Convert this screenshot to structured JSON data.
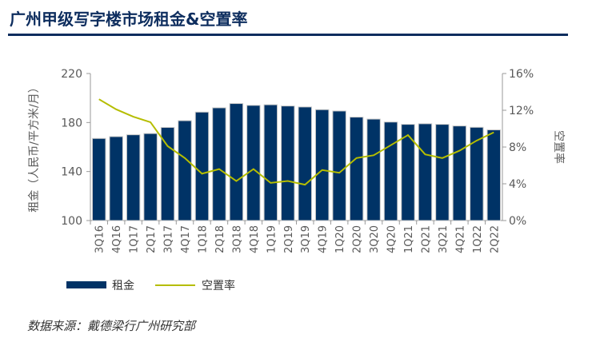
{
  "header": {
    "title": "广州甲级写字楼市场租金&空置率"
  },
  "source": "数据来源：戴德梁行广州研究部",
  "chart_data": {
    "type": "bar+line",
    "title": "广州甲级写字楼市场租金&空置率",
    "categories": [
      "3Q16",
      "4Q16",
      "1Q17",
      "2Q17",
      "3Q17",
      "4Q17",
      "1Q18",
      "2Q18",
      "3Q18",
      "4Q18",
      "1Q19",
      "2Q19",
      "3Q19",
      "4Q19",
      "1Q20",
      "2Q20",
      "3Q20",
      "4Q20",
      "1Q21",
      "2Q21",
      "3Q21",
      "4Q21",
      "1Q22",
      "2Q22"
    ],
    "series": [
      {
        "name": "租金",
        "type": "bar",
        "axis": "left",
        "color": "#003366",
        "values": [
          167,
          168.5,
          170,
          171,
          176,
          181.5,
          188.5,
          192,
          195.5,
          194,
          194.5,
          193.5,
          192.7,
          190.5,
          189.4,
          184.4,
          182.8,
          180.4,
          178.5,
          179,
          178.5,
          177.2,
          176.1,
          174
        ]
      },
      {
        "name": "空置率",
        "type": "line",
        "axis": "right",
        "color": "#b5bd00",
        "values": [
          13.2,
          12.1,
          11.3,
          10.7,
          8.1,
          6.8,
          5.1,
          5.6,
          4.3,
          5.6,
          4.1,
          4.3,
          3.9,
          5.5,
          5.2,
          6.8,
          7.1,
          8.2,
          9.3,
          7.2,
          6.8,
          7.6,
          8.7,
          9.6
        ]
      }
    ],
    "ylabel": "租金（人民币/平方米/月）",
    "ylim": [
      100,
      220
    ],
    "yticks": [
      "100",
      "140",
      "180",
      "220"
    ],
    "y2label": "空置率",
    "y2lim": [
      0,
      16
    ],
    "y2ticks": [
      "0%",
      "4%",
      "8%",
      "12%",
      "16%"
    ],
    "legend": "bottom-left"
  }
}
